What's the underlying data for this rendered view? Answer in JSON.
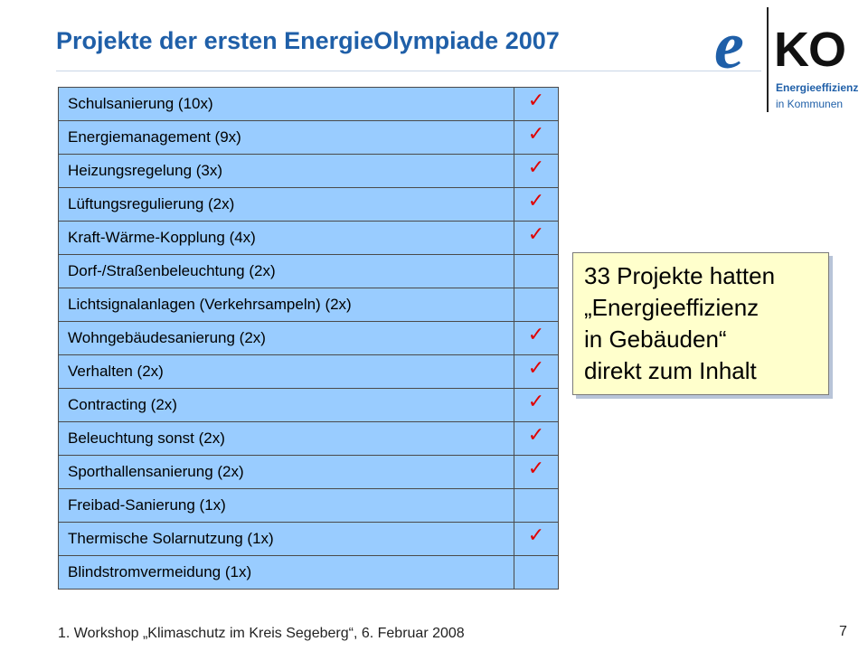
{
  "slide": {
    "title": "Projekte der ersten EnergieOlympiade 2007",
    "footer": "1. Workshop „Klimaschutz im Kreis Segeberg“, 6. Februar 2008",
    "page_number": "7"
  },
  "logo": {
    "letter": "e",
    "ko": "KO",
    "line1": "Energieeffizienz",
    "line2": "in Kommunen",
    "brand_color": "#1f5fa8"
  },
  "table": {
    "check_mark": "✓",
    "rows": [
      {
        "name": "Schulsanierung (10x)",
        "checked": true
      },
      {
        "name": "Energiemanagement (9x)",
        "checked": true
      },
      {
        "name": "Heizungsregelung (3x)",
        "checked": true
      },
      {
        "name": "Lüftungsregulierung (2x)",
        "checked": true
      },
      {
        "name": "Kraft-Wärme-Kopplung (4x)",
        "checked": true
      },
      {
        "name": "Dorf-/Straßenbeleuchtung (2x)",
        "checked": false
      },
      {
        "name": "Lichtsignalanlagen (Verkehrsampeln) (2x)",
        "checked": false
      },
      {
        "name": "Wohngebäudesanierung (2x)",
        "checked": true
      },
      {
        "name": "Verhalten (2x)",
        "checked": true
      },
      {
        "name": "Contracting (2x)",
        "checked": true
      },
      {
        "name": "Beleuchtung sonst (2x)",
        "checked": true
      },
      {
        "name": "Sporthallensanierung (2x)",
        "checked": true
      },
      {
        "name": "Freibad-Sanierung (1x)",
        "checked": false
      },
      {
        "name": "Thermische Solarnutzung (1x)",
        "checked": true
      },
      {
        "name": "Blindstromvermeidung (1x)",
        "checked": false
      }
    ],
    "cell_color": "#99ccff",
    "check_color": "#e00000"
  },
  "callout": {
    "lines": [
      "33 Projekte hatten",
      "„Energieeffizienz",
      "in Gebäuden“",
      "direkt zum Inhalt"
    ],
    "background": "#ffffcc"
  }
}
